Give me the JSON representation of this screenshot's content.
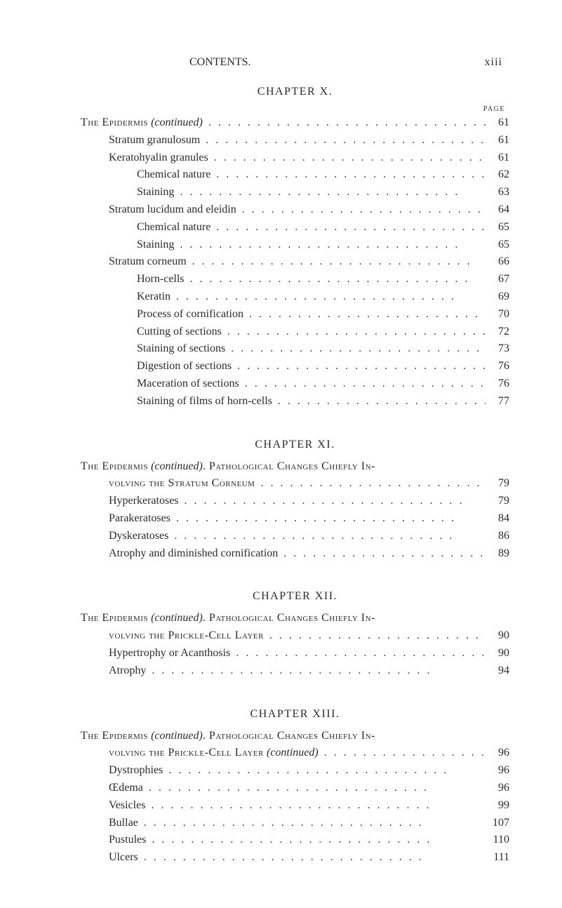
{
  "header": {
    "running_head": "CONTENTS.",
    "page_number": "xiii"
  },
  "page_label": "PAGE",
  "chapters": [
    {
      "title": "CHAPTER X.",
      "show_page_label": true,
      "entries": [
        {
          "label_prefix": "The Epidermis",
          "label_italic": " (continued)",
          "label_suffix": "",
          "indent": 0,
          "page": "61",
          "smallcaps": true
        },
        {
          "label": "Stratum granulosum",
          "indent": 1,
          "page": "61"
        },
        {
          "label": "Keratohyalin granules",
          "indent": 1,
          "page": "61"
        },
        {
          "label": "Chemical nature",
          "indent": 2,
          "page": "62"
        },
        {
          "label": "Staining",
          "indent": 2,
          "page": "63"
        },
        {
          "label": "Stratum lucidum and eleidin",
          "indent": 1,
          "page": "64"
        },
        {
          "label": "Chemical nature",
          "indent": 2,
          "page": "65"
        },
        {
          "label": "Staining",
          "indent": 2,
          "page": "65"
        },
        {
          "label": "Stratum corneum",
          "indent": 1,
          "page": "66"
        },
        {
          "label": "Horn-cells",
          "indent": 2,
          "page": "67"
        },
        {
          "label": "Keratin",
          "indent": 2,
          "page": "69"
        },
        {
          "label": "Process of cornification",
          "indent": 2,
          "page": "70"
        },
        {
          "label": "Cutting of sections",
          "indent": 2,
          "page": "72"
        },
        {
          "label": "Staining of sections",
          "indent": 2,
          "page": "73"
        },
        {
          "label": "Digestion of sections",
          "indent": 2,
          "page": "76"
        },
        {
          "label": "Maceration of sections",
          "indent": 2,
          "page": "76"
        },
        {
          "label": "Staining of films of horn-cells",
          "indent": 2,
          "page": "77"
        }
      ]
    },
    {
      "title": "CHAPTER XI.",
      "show_page_label": false,
      "entries": [
        {
          "label_prefix": "The Epidermis",
          "label_italic": " (continued)",
          "label_suffix_sc": ". Pathological Changes Chiefly In-",
          "indent": 0,
          "nopage": true,
          "smallcaps": true
        },
        {
          "label_sc": "volving the Stratum Corneum",
          "indent": 1,
          "page": "79",
          "continuation": true
        },
        {
          "label": "Hyperkeratoses",
          "indent": 1,
          "page": "79"
        },
        {
          "label": "Parakeratoses",
          "indent": 1,
          "page": "84"
        },
        {
          "label": "Dyskeratoses",
          "indent": 1,
          "page": "86"
        },
        {
          "label": "Atrophy and diminished cornification",
          "indent": 1,
          "page": "89"
        }
      ]
    },
    {
      "title": "CHAPTER XII.",
      "show_page_label": false,
      "entries": [
        {
          "label_prefix": "The Epidermis",
          "label_italic": " (continued)",
          "label_suffix_sc": ". Pathological Changes Chiefly In-",
          "indent": 0,
          "nopage": true,
          "smallcaps": true
        },
        {
          "label_sc": "volving the Prickle-Cell Layer",
          "indent": 1,
          "page": "90",
          "continuation": true
        },
        {
          "label": "Hypertrophy or Acanthosis",
          "indent": 1,
          "page": "90"
        },
        {
          "label": "Atrophy",
          "indent": 1,
          "page": "94"
        }
      ]
    },
    {
      "title": "CHAPTER XIII.",
      "show_page_label": false,
      "entries": [
        {
          "label_prefix": "The Epidermis",
          "label_italic": " (continued)",
          "label_suffix_sc": ". Pathological Changes Chiefly In-",
          "indent": 0,
          "nopage": true,
          "smallcaps": true
        },
        {
          "label_sc": "volving the Prickle-Cell Layer",
          "label_italic2": " (continued)",
          "indent": 1,
          "page": "96",
          "continuation": true
        },
        {
          "label": "Dystrophies",
          "indent": 1,
          "page": "96"
        },
        {
          "label": "Œdema",
          "indent": 1,
          "page": "96"
        },
        {
          "label": "Vesicles",
          "indent": 1,
          "page": "99"
        },
        {
          "label": "Bullae",
          "indent": 1,
          "page": "107"
        },
        {
          "label": "Pustules",
          "indent": 1,
          "page": "110"
        },
        {
          "label": "Ulcers",
          "indent": 1,
          "page": "111"
        }
      ]
    }
  ]
}
